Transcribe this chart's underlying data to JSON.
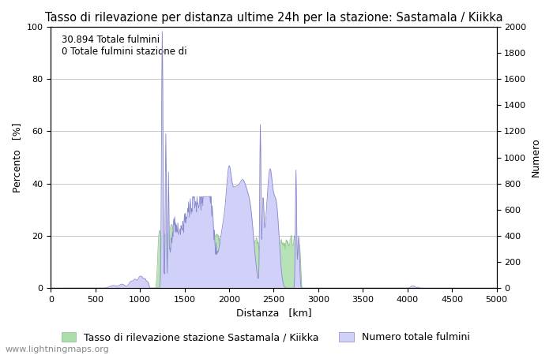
{
  "title": "Tasso di rilevazione per distanza ultime 24h per la stazione: Sastamala / Kiikka",
  "xlabel": "Distanza   [km]",
  "ylabel_left": "Percento   [%]",
  "ylabel_right": "Numero",
  "annotation_line1": "30.894 Totale fulmini",
  "annotation_line2": "0 Totale fulmini stazione di",
  "xlim": [
    0,
    5000
  ],
  "ylim_left": [
    0,
    100
  ],
  "ylim_right": [
    0,
    2000
  ],
  "xticks": [
    0,
    500,
    1000,
    1500,
    2000,
    2500,
    3000,
    3500,
    4000,
    4500,
    5000
  ],
  "yticks_left": [
    0,
    20,
    40,
    60,
    80,
    100
  ],
  "yticks_right": [
    0,
    200,
    400,
    600,
    800,
    1000,
    1200,
    1400,
    1600,
    1800,
    2000
  ],
  "legend_green_label": "Tasso di rilevazione stazione Sastamala / Kiikka",
  "legend_blue_label": "Numero totale fulmini",
  "green_color": "#aaddaa",
  "blue_fill_color": "#d0d0f8",
  "blue_line_color": "#8888cc",
  "background_color": "#ffffff",
  "grid_color": "#c8c8c8",
  "watermark": "www.lightningmaps.org",
  "title_fontsize": 10.5,
  "label_fontsize": 9,
  "tick_fontsize": 8,
  "watermark_fontsize": 8,
  "annotation_fontsize": 8.5
}
